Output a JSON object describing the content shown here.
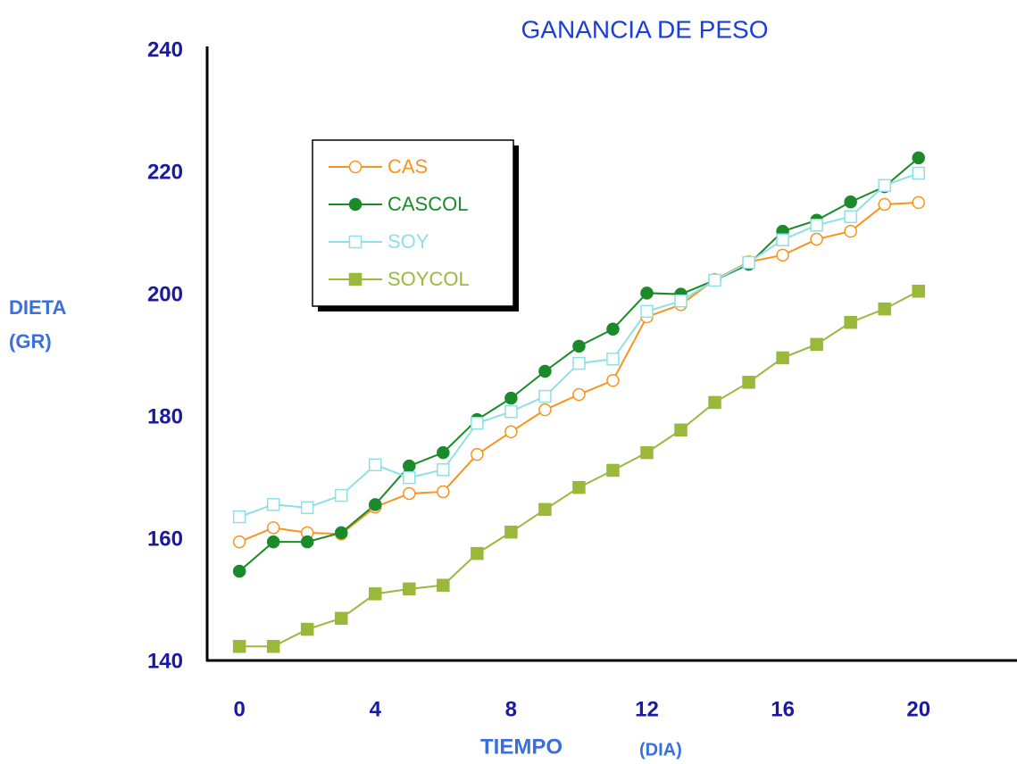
{
  "chart_data": {
    "type": "line",
    "title": "GANANCIA DE PESO",
    "ylabel": [
      "DIETA",
      "(GR)"
    ],
    "xlabel": [
      "TIEMPO",
      "(DIA)"
    ],
    "x": [
      0,
      1,
      2,
      3,
      4,
      5,
      6,
      7,
      8,
      9,
      10,
      11,
      12,
      13,
      14,
      15,
      16,
      17,
      18,
      19,
      20
    ],
    "series": [
      {
        "name": "CAS",
        "color": "#f7941d",
        "marker": "circle-open",
        "values": [
          159.4,
          161.7,
          160.9,
          160.7,
          165.1,
          167.3,
          167.6,
          173.7,
          177.4,
          181.0,
          183.5,
          185.8,
          196.2,
          198.2,
          202.3,
          205.2,
          206.3,
          208.9,
          210.2,
          214.6,
          214.9
        ]
      },
      {
        "name": "CASCOL",
        "color": "#1a8a2a",
        "marker": "circle-filled",
        "values": [
          154.6,
          159.4,
          159.4,
          160.9,
          165.5,
          171.8,
          174.0,
          179.4,
          182.9,
          187.3,
          191.4,
          194.2,
          200.1,
          199.9,
          202.2,
          204.8,
          210.2,
          212.0,
          215.0,
          217.5,
          222.2
        ]
      },
      {
        "name": "SOY",
        "color": "#8ee0e8",
        "marker": "square-open",
        "values": [
          163.5,
          165.5,
          165.0,
          167.0,
          172.0,
          169.9,
          171.2,
          178.8,
          180.7,
          183.2,
          188.6,
          189.3,
          197.1,
          198.8,
          202.2,
          205.1,
          208.8,
          211.2,
          212.6,
          217.7,
          219.7
        ]
      },
      {
        "name": "SOYCOL",
        "color": "#9ab93b",
        "marker": "square-filled",
        "values": [
          142.3,
          142.3,
          145.1,
          146.9,
          150.9,
          151.7,
          152.3,
          157.5,
          161.0,
          164.7,
          168.3,
          171.1,
          174.0,
          177.7,
          182.2,
          185.5,
          189.5,
          191.7,
          195.3,
          197.5,
          200.4
        ]
      }
    ],
    "xlim": [
      -0.95,
      22.9
    ],
    "ylim": [
      140,
      240
    ],
    "xticks": [
      0,
      4,
      8,
      12,
      16,
      20
    ],
    "yticks": [
      140,
      160,
      180,
      200,
      220,
      240
    ],
    "legend": "upper left"
  }
}
